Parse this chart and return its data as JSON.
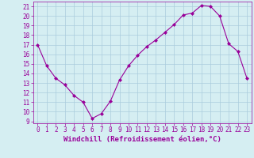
{
  "x": [
    0,
    1,
    2,
    3,
    4,
    5,
    6,
    7,
    8,
    9,
    10,
    11,
    12,
    13,
    14,
    15,
    16,
    17,
    18,
    19,
    20,
    21,
    22,
    23
  ],
  "y": [
    17,
    14.8,
    13.5,
    12.8,
    11.7,
    11.0,
    9.3,
    9.8,
    11.1,
    13.3,
    14.8,
    15.9,
    16.8,
    17.5,
    18.3,
    19.1,
    20.1,
    20.3,
    21.1,
    21.0,
    20.0,
    17.1,
    16.3,
    13.5
  ],
  "line_color": "#990099",
  "marker": "D",
  "marker_size": 2.0,
  "bg_color": "#d5eef2",
  "grid_color": "#aaccdd",
  "xlabel": "Windchill (Refroidissement éolien,°C)",
  "xlim": [
    -0.5,
    23.5
  ],
  "ylim": [
    8.8,
    21.5
  ],
  "yticks": [
    9,
    10,
    11,
    12,
    13,
    14,
    15,
    16,
    17,
    18,
    19,
    20,
    21
  ],
  "xticks": [
    0,
    1,
    2,
    3,
    4,
    5,
    6,
    7,
    8,
    9,
    10,
    11,
    12,
    13,
    14,
    15,
    16,
    17,
    18,
    19,
    20,
    21,
    22,
    23
  ],
  "tick_color": "#990099",
  "xlabel_color": "#990099",
  "xlabel_fontsize": 6.5,
  "tick_fontsize": 5.5,
  "line_width": 0.8,
  "spine_color": "#990099"
}
